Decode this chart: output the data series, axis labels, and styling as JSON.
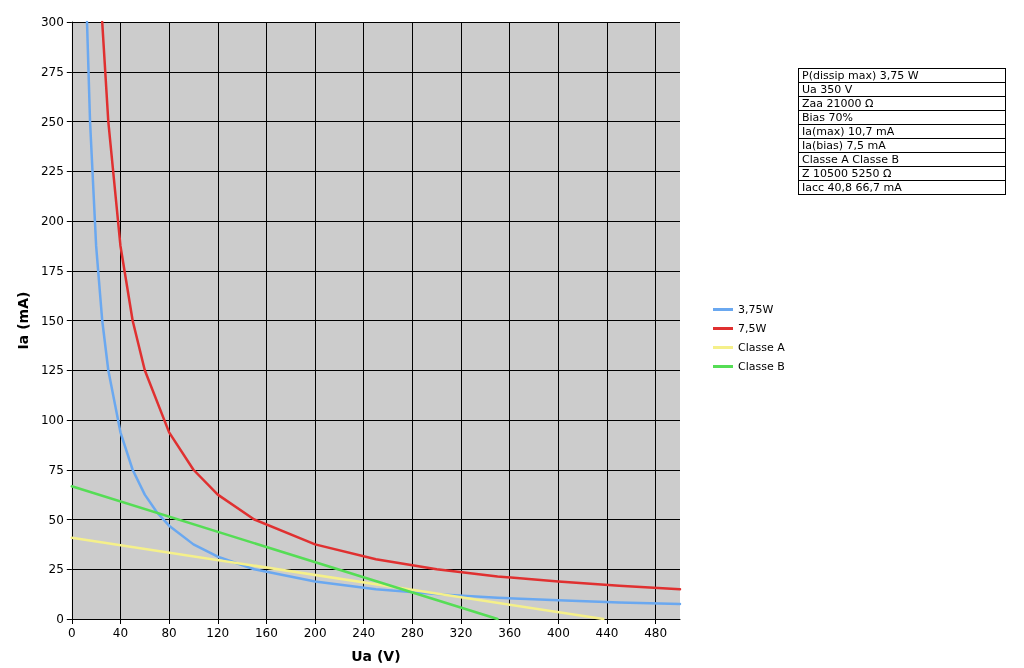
{
  "chart_data": [
    {
      "type": "line",
      "xlabel": "Ua (V)",
      "ylabel": "Ia (mA)",
      "xlim": [
        0,
        500
      ],
      "xticks": [
        0,
        40,
        80,
        120,
        160,
        200,
        240,
        280,
        320,
        360,
        400,
        440,
        480
      ],
      "ylim": [
        0,
        300
      ],
      "yticks": [
        0,
        25,
        50,
        75,
        100,
        125,
        150,
        175,
        200,
        225,
        250,
        275,
        300
      ],
      "grid": true,
      "legend": "right",
      "marker": "none",
      "series": [
        {
          "name": "3,75W",
          "color": "#6aa8f0",
          "x": [
            12.5,
            15,
            20,
            25,
            30,
            40,
            50,
            60,
            70,
            80,
            100,
            120,
            150,
            200,
            250,
            300,
            350,
            400,
            450,
            500
          ],
          "values": [
            300,
            250,
            187.5,
            150,
            125,
            93.8,
            75,
            62.5,
            53.6,
            46.9,
            37.5,
            31.3,
            25,
            18.8,
            15,
            12.5,
            10.7,
            9.4,
            8.3,
            7.5
          ]
        },
        {
          "name": "7,5W",
          "color": "#e03030",
          "x": [
            25,
            30,
            40,
            50,
            60,
            80,
            100,
            120,
            150,
            200,
            250,
            300,
            350,
            400,
            450,
            500
          ],
          "values": [
            300,
            250,
            187.5,
            150,
            125,
            93.8,
            75,
            62.5,
            50,
            37.5,
            30,
            25,
            21.4,
            18.8,
            16.7,
            15
          ]
        },
        {
          "name": "Classe A",
          "color": "#f5f08a",
          "x": [
            0,
            437
          ],
          "values": [
            40.8,
            0
          ]
        },
        {
          "name": "Classe B",
          "color": "#55dd55",
          "x": [
            0,
            350
          ],
          "values": [
            66.7,
            0
          ]
        }
      ]
    },
    {
      "type": "other",
      "annotations": [
        "P(dissip max) 3,75 W",
        "Ua 350 V",
        "Zaa 21000 Ω",
        "Bias 70%",
        "Ia(max) 10,7 mA",
        "Ia(bias) 7,5 mA",
        "Classe A Classe B",
        "Z 10500 5250 Ω",
        "Iacc 40,8 66,7 mA"
      ]
    }
  ]
}
